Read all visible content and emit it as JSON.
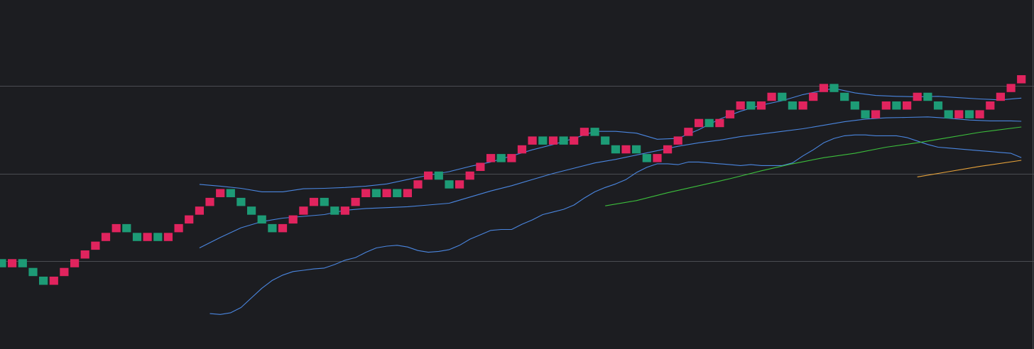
{
  "chart_data": {
    "type": "renko",
    "title": "",
    "xlabel": "",
    "ylabel": "",
    "ylim": [
      0,
      4
    ],
    "grid": {
      "horizontal": true,
      "vertical": false,
      "levels": [
        1,
        2,
        3
      ]
    },
    "colors": {
      "background": "#1c1d21",
      "grid": "#4b4d52",
      "brick_down": "#e0245e",
      "brick_up": "#1d9b76",
      "bollinger": "#4a86e0",
      "ma_green": "#3cbf3c",
      "ma_orange": "#e8a33a"
    },
    "brick_size": 0.1,
    "bricks": [
      {
        "i": 0,
        "level": 0.975,
        "dir": "up"
      },
      {
        "i": 1,
        "level": 0.975,
        "dir": "down"
      },
      {
        "i": 2,
        "level": 0.975,
        "dir": "up"
      },
      {
        "i": 3,
        "level": 0.875,
        "dir": "up"
      },
      {
        "i": 4,
        "level": 0.775,
        "dir": "up"
      },
      {
        "i": 5,
        "level": 0.775,
        "dir": "down"
      },
      {
        "i": 6,
        "level": 0.875,
        "dir": "down"
      },
      {
        "i": 7,
        "level": 0.975,
        "dir": "down"
      },
      {
        "i": 8,
        "level": 1.075,
        "dir": "down"
      },
      {
        "i": 9,
        "level": 1.175,
        "dir": "down"
      },
      {
        "i": 10,
        "level": 1.275,
        "dir": "down"
      },
      {
        "i": 11,
        "level": 1.375,
        "dir": "down"
      },
      {
        "i": 12,
        "level": 1.375,
        "dir": "up"
      },
      {
        "i": 13,
        "level": 1.275,
        "dir": "up"
      },
      {
        "i": 14,
        "level": 1.275,
        "dir": "down"
      },
      {
        "i": 15,
        "level": 1.275,
        "dir": "up"
      },
      {
        "i": 16,
        "level": 1.275,
        "dir": "down"
      },
      {
        "i": 17,
        "level": 1.375,
        "dir": "down"
      },
      {
        "i": 18,
        "level": 1.475,
        "dir": "down"
      },
      {
        "i": 19,
        "level": 1.575,
        "dir": "down"
      },
      {
        "i": 20,
        "level": 1.675,
        "dir": "down"
      },
      {
        "i": 21,
        "level": 1.775,
        "dir": "down"
      },
      {
        "i": 22,
        "level": 1.775,
        "dir": "up"
      },
      {
        "i": 23,
        "level": 1.675,
        "dir": "up"
      },
      {
        "i": 24,
        "level": 1.575,
        "dir": "up"
      },
      {
        "i": 25,
        "level": 1.475,
        "dir": "up"
      },
      {
        "i": 26,
        "level": 1.375,
        "dir": "up"
      },
      {
        "i": 27,
        "level": 1.375,
        "dir": "down"
      },
      {
        "i": 28,
        "level": 1.475,
        "dir": "down"
      },
      {
        "i": 29,
        "level": 1.575,
        "dir": "down"
      },
      {
        "i": 30,
        "level": 1.675,
        "dir": "down"
      },
      {
        "i": 31,
        "level": 1.675,
        "dir": "up"
      },
      {
        "i": 32,
        "level": 1.575,
        "dir": "up"
      },
      {
        "i": 33,
        "level": 1.575,
        "dir": "down"
      },
      {
        "i": 34,
        "level": 1.675,
        "dir": "down"
      },
      {
        "i": 35,
        "level": 1.775,
        "dir": "down"
      },
      {
        "i": 36,
        "level": 1.775,
        "dir": "up"
      },
      {
        "i": 37,
        "level": 1.775,
        "dir": "down"
      },
      {
        "i": 38,
        "level": 1.775,
        "dir": "up"
      },
      {
        "i": 39,
        "level": 1.775,
        "dir": "down"
      },
      {
        "i": 40,
        "level": 1.875,
        "dir": "down"
      },
      {
        "i": 41,
        "level": 1.975,
        "dir": "down"
      },
      {
        "i": 42,
        "level": 1.975,
        "dir": "up"
      },
      {
        "i": 43,
        "level": 1.875,
        "dir": "up"
      },
      {
        "i": 44,
        "level": 1.875,
        "dir": "down"
      },
      {
        "i": 45,
        "level": 1.975,
        "dir": "down"
      },
      {
        "i": 46,
        "level": 2.075,
        "dir": "down"
      },
      {
        "i": 47,
        "level": 2.175,
        "dir": "down"
      },
      {
        "i": 48,
        "level": 2.175,
        "dir": "up"
      },
      {
        "i": 49,
        "level": 2.175,
        "dir": "down"
      },
      {
        "i": 50,
        "level": 2.275,
        "dir": "down"
      },
      {
        "i": 51,
        "level": 2.375,
        "dir": "down"
      },
      {
        "i": 52,
        "level": 2.375,
        "dir": "up"
      },
      {
        "i": 53,
        "level": 2.375,
        "dir": "down"
      },
      {
        "i": 54,
        "level": 2.375,
        "dir": "up"
      },
      {
        "i": 55,
        "level": 2.375,
        "dir": "down"
      },
      {
        "i": 56,
        "level": 2.475,
        "dir": "down"
      },
      {
        "i": 57,
        "level": 2.475,
        "dir": "up"
      },
      {
        "i": 58,
        "level": 2.375,
        "dir": "up"
      },
      {
        "i": 59,
        "level": 2.275,
        "dir": "up"
      },
      {
        "i": 60,
        "level": 2.275,
        "dir": "down"
      },
      {
        "i": 61,
        "level": 2.275,
        "dir": "up"
      },
      {
        "i": 62,
        "level": 2.175,
        "dir": "up"
      },
      {
        "i": 63,
        "level": 2.175,
        "dir": "down"
      },
      {
        "i": 64,
        "level": 2.275,
        "dir": "down"
      },
      {
        "i": 65,
        "level": 2.375,
        "dir": "down"
      },
      {
        "i": 66,
        "level": 2.475,
        "dir": "down"
      },
      {
        "i": 67,
        "level": 2.575,
        "dir": "down"
      },
      {
        "i": 68,
        "level": 2.575,
        "dir": "up"
      },
      {
        "i": 69,
        "level": 2.575,
        "dir": "down"
      },
      {
        "i": 70,
        "level": 2.675,
        "dir": "down"
      },
      {
        "i": 71,
        "level": 2.775,
        "dir": "down"
      },
      {
        "i": 72,
        "level": 2.775,
        "dir": "up"
      },
      {
        "i": 73,
        "level": 2.775,
        "dir": "down"
      },
      {
        "i": 74,
        "level": 2.875,
        "dir": "down"
      },
      {
        "i": 75,
        "level": 2.875,
        "dir": "up"
      },
      {
        "i": 76,
        "level": 2.775,
        "dir": "up"
      },
      {
        "i": 77,
        "level": 2.775,
        "dir": "down"
      },
      {
        "i": 78,
        "level": 2.875,
        "dir": "down"
      },
      {
        "i": 79,
        "level": 2.975,
        "dir": "down"
      },
      {
        "i": 80,
        "level": 2.975,
        "dir": "up"
      },
      {
        "i": 81,
        "level": 2.875,
        "dir": "up"
      },
      {
        "i": 82,
        "level": 2.775,
        "dir": "up"
      },
      {
        "i": 83,
        "level": 2.675,
        "dir": "up"
      },
      {
        "i": 84,
        "level": 2.675,
        "dir": "down"
      },
      {
        "i": 85,
        "level": 2.775,
        "dir": "down"
      },
      {
        "i": 86,
        "level": 2.775,
        "dir": "up"
      },
      {
        "i": 87,
        "level": 2.775,
        "dir": "down"
      },
      {
        "i": 88,
        "level": 2.875,
        "dir": "down"
      },
      {
        "i": 89,
        "level": 2.875,
        "dir": "up"
      },
      {
        "i": 90,
        "level": 2.775,
        "dir": "up"
      },
      {
        "i": 91,
        "level": 2.675,
        "dir": "up"
      },
      {
        "i": 92,
        "level": 2.675,
        "dir": "down"
      },
      {
        "i": 93,
        "level": 2.675,
        "dir": "up"
      },
      {
        "i": 94,
        "level": 2.675,
        "dir": "down"
      },
      {
        "i": 95,
        "level": 2.775,
        "dir": "down"
      },
      {
        "i": 96,
        "level": 2.875,
        "dir": "down"
      },
      {
        "i": 97,
        "level": 2.975,
        "dir": "down"
      },
      {
        "i": 98,
        "level": 3.075,
        "dir": "down"
      }
    ],
    "series": [
      {
        "kind": "bollinger_upper",
        "points": [
          [
            19,
            1.875
          ],
          [
            21,
            1.855
          ],
          [
            23,
            1.83
          ],
          [
            25,
            1.79
          ],
          [
            27,
            1.79
          ],
          [
            29,
            1.825
          ],
          [
            31,
            1.83
          ],
          [
            33,
            1.84
          ],
          [
            35,
            1.855
          ],
          [
            37,
            1.88
          ],
          [
            39,
            1.93
          ],
          [
            41,
            1.98
          ],
          [
            43,
            2.02
          ],
          [
            45,
            2.08
          ],
          [
            47,
            2.13
          ],
          [
            49,
            2.2
          ],
          [
            51,
            2.27
          ],
          [
            53,
            2.33
          ],
          [
            55,
            2.4
          ],
          [
            57,
            2.48
          ],
          [
            59,
            2.48
          ],
          [
            61,
            2.46
          ],
          [
            63,
            2.39
          ],
          [
            65,
            2.4
          ],
          [
            67,
            2.5
          ],
          [
            69,
            2.62
          ],
          [
            71,
            2.71
          ],
          [
            73,
            2.78
          ],
          [
            75,
            2.83
          ],
          [
            77,
            2.9
          ],
          [
            79,
            2.95
          ],
          [
            80,
            2.97
          ],
          [
            82,
            2.92
          ],
          [
            84,
            2.89
          ],
          [
            86,
            2.88
          ],
          [
            88,
            2.875
          ],
          [
            90,
            2.88
          ],
          [
            92,
            2.865
          ],
          [
            94,
            2.85
          ],
          [
            96,
            2.84
          ],
          [
            98,
            2.86
          ]
        ]
      },
      {
        "kind": "bollinger_middle",
        "points": [
          [
            19,
            1.15
          ],
          [
            21,
            1.27
          ],
          [
            23,
            1.38
          ],
          [
            25,
            1.45
          ],
          [
            27,
            1.49
          ],
          [
            29,
            1.51
          ],
          [
            31,
            1.53
          ],
          [
            33,
            1.58
          ],
          [
            35,
            1.6
          ],
          [
            37,
            1.61
          ],
          [
            39,
            1.62
          ],
          [
            41,
            1.64
          ],
          [
            43,
            1.66
          ],
          [
            45,
            1.73
          ],
          [
            47,
            1.8
          ],
          [
            49,
            1.86
          ],
          [
            51,
            1.93
          ],
          [
            53,
            2.0
          ],
          [
            55,
            2.06
          ],
          [
            57,
            2.12
          ],
          [
            59,
            2.16
          ],
          [
            61,
            2.21
          ],
          [
            63,
            2.26
          ],
          [
            65,
            2.31
          ],
          [
            67,
            2.35
          ],
          [
            69,
            2.38
          ],
          [
            71,
            2.42
          ],
          [
            73,
            2.45
          ],
          [
            75,
            2.48
          ],
          [
            77,
            2.51
          ],
          [
            79,
            2.55
          ],
          [
            81,
            2.59
          ],
          [
            83,
            2.62
          ],
          [
            85,
            2.635
          ],
          [
            87,
            2.64
          ],
          [
            89,
            2.645
          ],
          [
            91,
            2.63
          ],
          [
            93,
            2.61
          ],
          [
            95,
            2.6
          ],
          [
            97,
            2.6
          ],
          [
            98,
            2.595
          ]
        ]
      },
      {
        "kind": "bollinger_lower",
        "points": [
          [
            20,
            0.4
          ],
          [
            21,
            0.39
          ],
          [
            22,
            0.41
          ],
          [
            23,
            0.47
          ],
          [
            24,
            0.58
          ],
          [
            25,
            0.69
          ],
          [
            26,
            0.78
          ],
          [
            27,
            0.84
          ],
          [
            28,
            0.88
          ],
          [
            29,
            0.895
          ],
          [
            30,
            0.91
          ],
          [
            31,
            0.92
          ],
          [
            32,
            0.96
          ],
          [
            33,
            1.01
          ],
          [
            34,
            1.04
          ],
          [
            35,
            1.1
          ],
          [
            36,
            1.15
          ],
          [
            37,
            1.17
          ],
          [
            38,
            1.18
          ],
          [
            39,
            1.16
          ],
          [
            40,
            1.12
          ],
          [
            41,
            1.1
          ],
          [
            42,
            1.11
          ],
          [
            43,
            1.13
          ],
          [
            44,
            1.18
          ],
          [
            45,
            1.25
          ],
          [
            46,
            1.3
          ],
          [
            47,
            1.35
          ],
          [
            48,
            1.36
          ],
          [
            49,
            1.36
          ],
          [
            50,
            1.42
          ],
          [
            51,
            1.47
          ],
          [
            52,
            1.53
          ],
          [
            53,
            1.56
          ],
          [
            54,
            1.59
          ],
          [
            55,
            1.64
          ],
          [
            56,
            1.72
          ],
          [
            57,
            1.79
          ],
          [
            58,
            1.84
          ],
          [
            59,
            1.88
          ],
          [
            60,
            1.93
          ],
          [
            61,
            2.01
          ],
          [
            62,
            2.07
          ],
          [
            63,
            2.11
          ],
          [
            64,
            2.11
          ],
          [
            65,
            2.1
          ],
          [
            66,
            2.13
          ],
          [
            67,
            2.13
          ],
          [
            68,
            2.12
          ],
          [
            69,
            2.11
          ],
          [
            70,
            2.1
          ],
          [
            71,
            2.09
          ],
          [
            72,
            2.1
          ],
          [
            73,
            2.09
          ],
          [
            74,
            2.09
          ],
          [
            75,
            2.09
          ],
          [
            76,
            2.12
          ],
          [
            77,
            2.2
          ],
          [
            78,
            2.27
          ],
          [
            79,
            2.35
          ],
          [
            80,
            2.4
          ],
          [
            81,
            2.43
          ],
          [
            82,
            2.44
          ],
          [
            83,
            2.44
          ],
          [
            84,
            2.43
          ],
          [
            85,
            2.43
          ],
          [
            86,
            2.43
          ],
          [
            87,
            2.41
          ],
          [
            88,
            2.37
          ],
          [
            89,
            2.33
          ],
          [
            90,
            2.3
          ],
          [
            91,
            2.29
          ],
          [
            92,
            2.28
          ],
          [
            93,
            2.27
          ],
          [
            94,
            2.26
          ],
          [
            95,
            2.25
          ],
          [
            96,
            2.24
          ],
          [
            97,
            2.23
          ],
          [
            98,
            2.18
          ]
        ]
      },
      {
        "kind": "moving_average_green",
        "points": [
          [
            58,
            1.63
          ],
          [
            61,
            1.69
          ],
          [
            64,
            1.78
          ],
          [
            67,
            1.86
          ],
          [
            70,
            1.94
          ],
          [
            73,
            2.03
          ],
          [
            76,
            2.11
          ],
          [
            79,
            2.18
          ],
          [
            82,
            2.23
          ],
          [
            85,
            2.3
          ],
          [
            88,
            2.35
          ],
          [
            91,
            2.41
          ],
          [
            94,
            2.47
          ],
          [
            98,
            2.53
          ]
        ]
      },
      {
        "kind": "moving_average_orange",
        "points": [
          [
            88,
            1.96
          ],
          [
            91,
            2.02
          ],
          [
            94,
            2.08
          ],
          [
            98,
            2.15
          ]
        ]
      }
    ]
  }
}
